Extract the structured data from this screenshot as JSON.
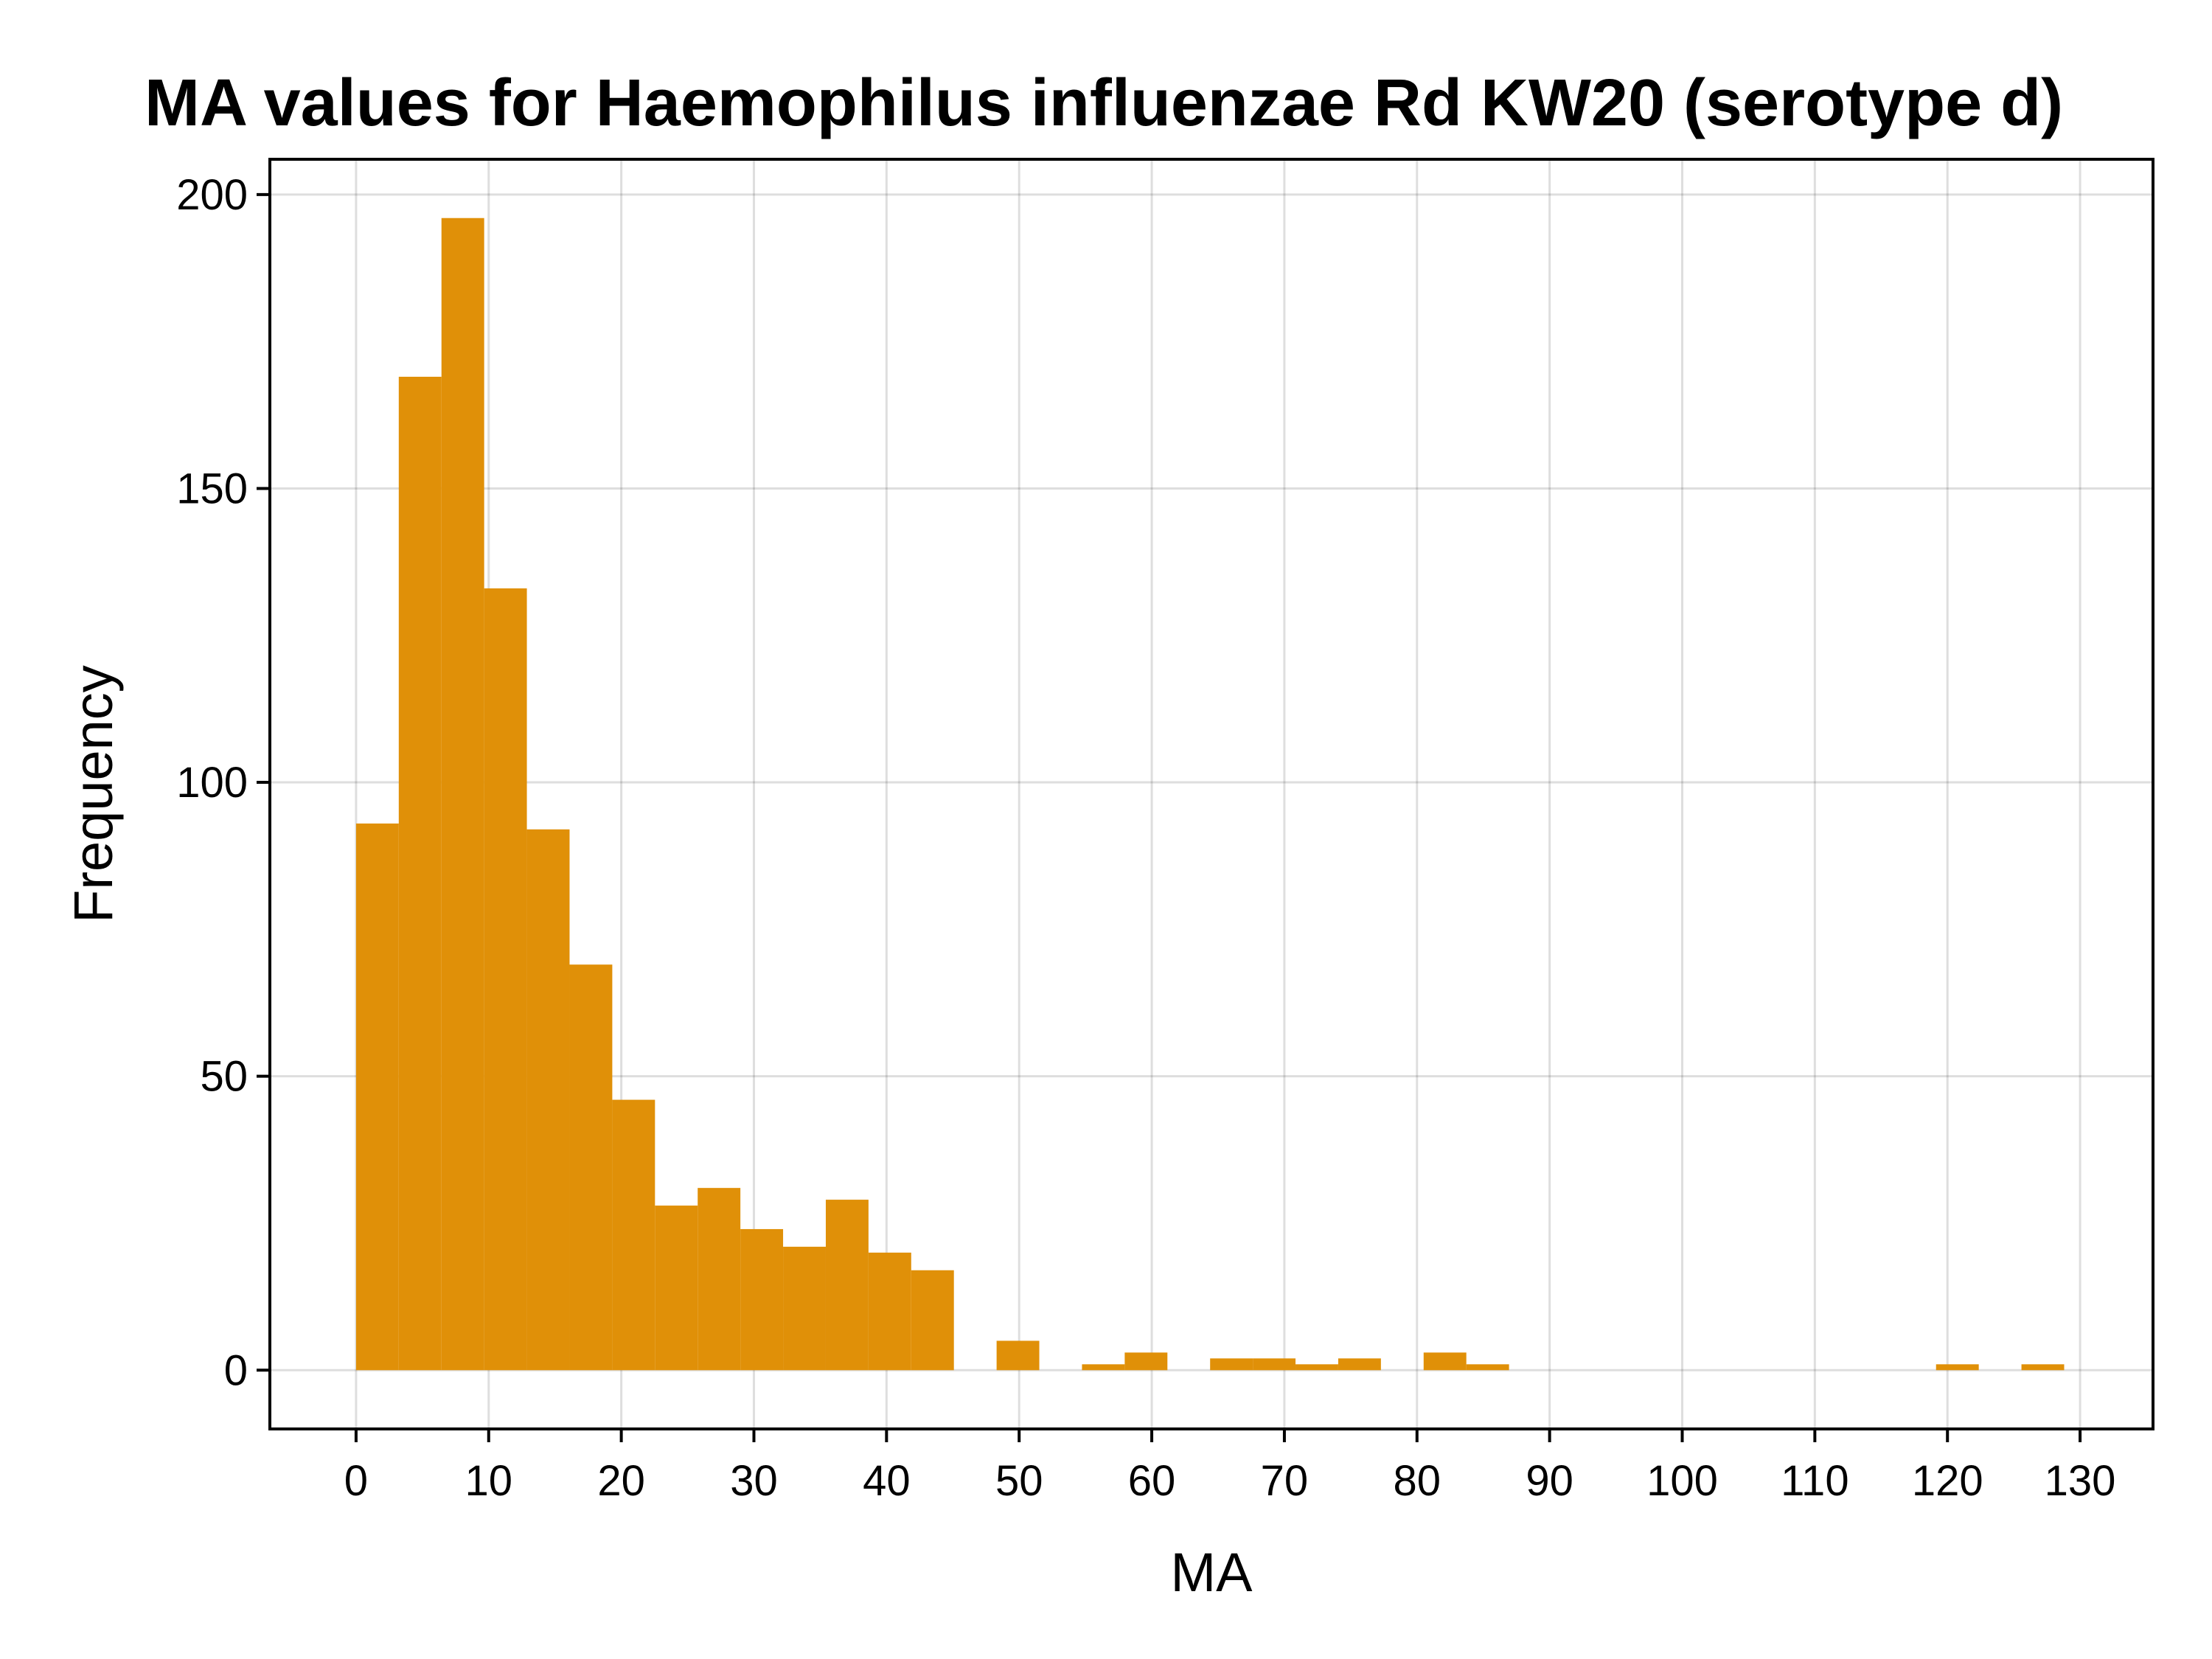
{
  "chart_data": {
    "type": "bar",
    "title": "MA values for Haemophilus influenzae Rd KW20 (serotype d)",
    "xlabel": "MA",
    "ylabel": "Frequency",
    "xlim": [
      -6.5,
      135.5
    ],
    "ylim": [
      -10,
      206
    ],
    "xticks": [
      0,
      10,
      20,
      30,
      40,
      50,
      60,
      70,
      80,
      90,
      100,
      110,
      120,
      130
    ],
    "yticks": [
      0,
      50,
      100,
      150,
      200
    ],
    "grid": true,
    "bar_color": "#e09008",
    "bin_width": 3.22,
    "bins": [
      {
        "start": 0.0,
        "value": 93
      },
      {
        "start": 3.22,
        "value": 169
      },
      {
        "start": 6.44,
        "value": 196
      },
      {
        "start": 9.66,
        "value": 133
      },
      {
        "start": 12.88,
        "value": 92
      },
      {
        "start": 16.1,
        "value": 69
      },
      {
        "start": 19.32,
        "value": 46
      },
      {
        "start": 22.54,
        "value": 28
      },
      {
        "start": 25.76,
        "value": 31
      },
      {
        "start": 28.98,
        "value": 24
      },
      {
        "start": 32.2,
        "value": 21
      },
      {
        "start": 35.42,
        "value": 29
      },
      {
        "start": 38.64,
        "value": 20
      },
      {
        "start": 41.86,
        "value": 17
      },
      {
        "start": 48.3,
        "value": 5
      },
      {
        "start": 54.74,
        "value": 1
      },
      {
        "start": 57.96,
        "value": 3
      },
      {
        "start": 64.4,
        "value": 2
      },
      {
        "start": 67.62,
        "value": 2
      },
      {
        "start": 70.84,
        "value": 1
      },
      {
        "start": 74.06,
        "value": 2
      },
      {
        "start": 80.5,
        "value": 3
      },
      {
        "start": 83.72,
        "value": 1
      },
      {
        "start": 119.14,
        "value": 1
      },
      {
        "start": 125.58,
        "value": 1
      }
    ]
  }
}
